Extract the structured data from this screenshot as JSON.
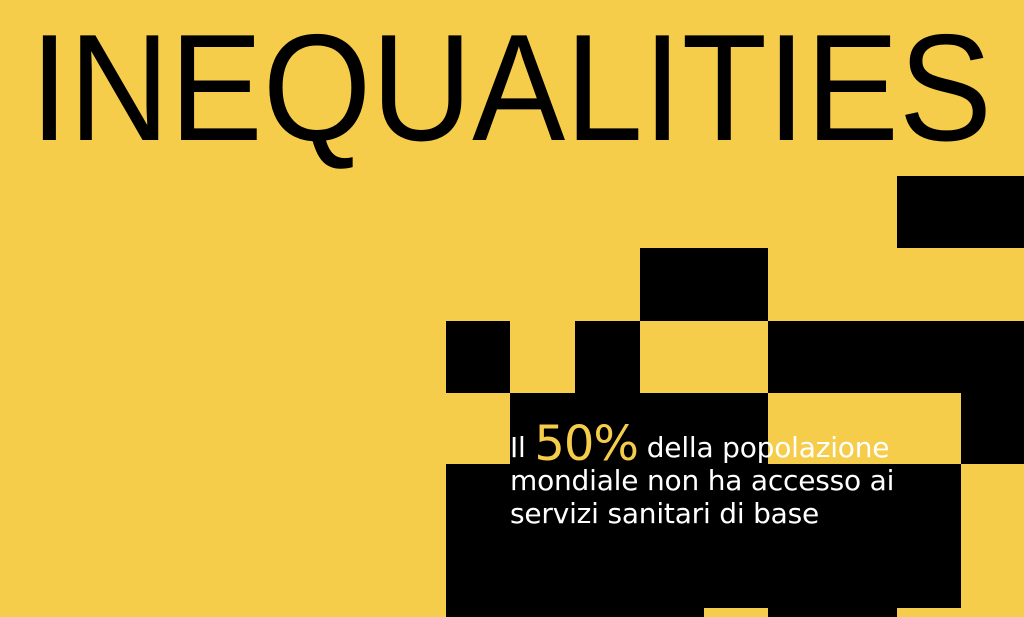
{
  "title": "INEQUALITIES",
  "caption": {
    "prefix": "Il",
    "highlight": "50%",
    "line1_rest": "della popolazione",
    "line2": "mondiale non ha accesso ai",
    "line3": "servizi sanitari di base"
  },
  "colors": {
    "background": "#F6CD4A",
    "blocks": "#000000",
    "highlight": "#F6CD4A",
    "text": "#FFFFFF"
  }
}
